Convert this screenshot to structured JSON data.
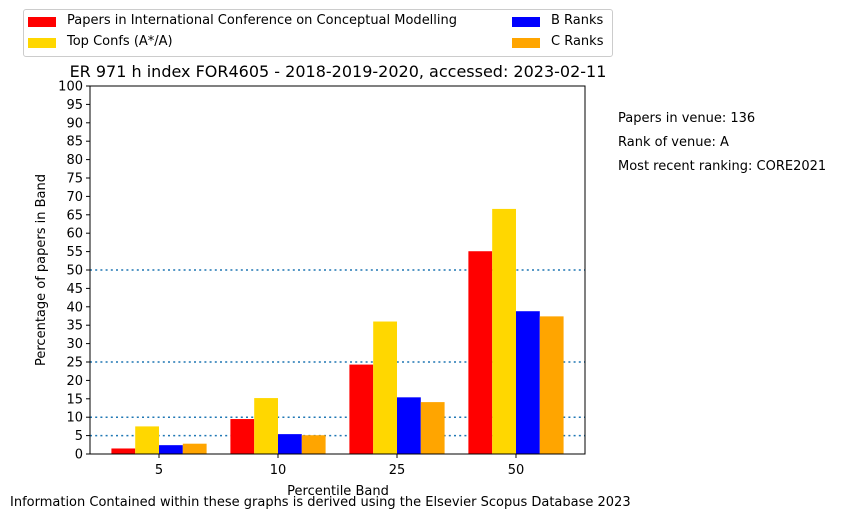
{
  "chart_data": {
    "type": "bar",
    "title": "ER 971 h index FOR4605 - 2018-2019-2020, accessed: 2023-02-11",
    "xlabel": "Percentile Band",
    "ylabel": "Percentage of papers in Band",
    "categories": [
      "5",
      "10",
      "25",
      "50"
    ],
    "ylim": [
      0,
      100
    ],
    "yticks": [
      0,
      5,
      10,
      15,
      20,
      25,
      30,
      35,
      40,
      45,
      50,
      55,
      60,
      65,
      70,
      75,
      80,
      85,
      90,
      95,
      100
    ],
    "grid": false,
    "reference_lines": [
      5,
      10,
      25,
      50
    ],
    "legend_position": "top-left, outside plot",
    "series": [
      {
        "name": "Papers in International Conference on Conceptual Modelling",
        "color": "#ff0000",
        "values": [
          1.5,
          9.5,
          24.3,
          55.1
        ]
      },
      {
        "name": "Top Confs (A*/A)",
        "color": "#ffd700",
        "values": [
          7.5,
          15.2,
          36.0,
          66.6
        ]
      },
      {
        "name": "B Ranks",
        "color": "#0000ff",
        "values": [
          2.4,
          5.4,
          15.4,
          38.8
        ]
      },
      {
        "name": "C Ranks",
        "color": "#ffa500",
        "values": [
          2.8,
          5.1,
          14.1,
          37.4
        ]
      }
    ]
  },
  "side_notes": {
    "papers": "Papers in venue: 136",
    "rank": "Rank of venue: A",
    "recent": "Most recent ranking: CORE2021"
  },
  "footer": "Information Contained within these graphs is derived using the Elsevier Scopus Database 2023"
}
